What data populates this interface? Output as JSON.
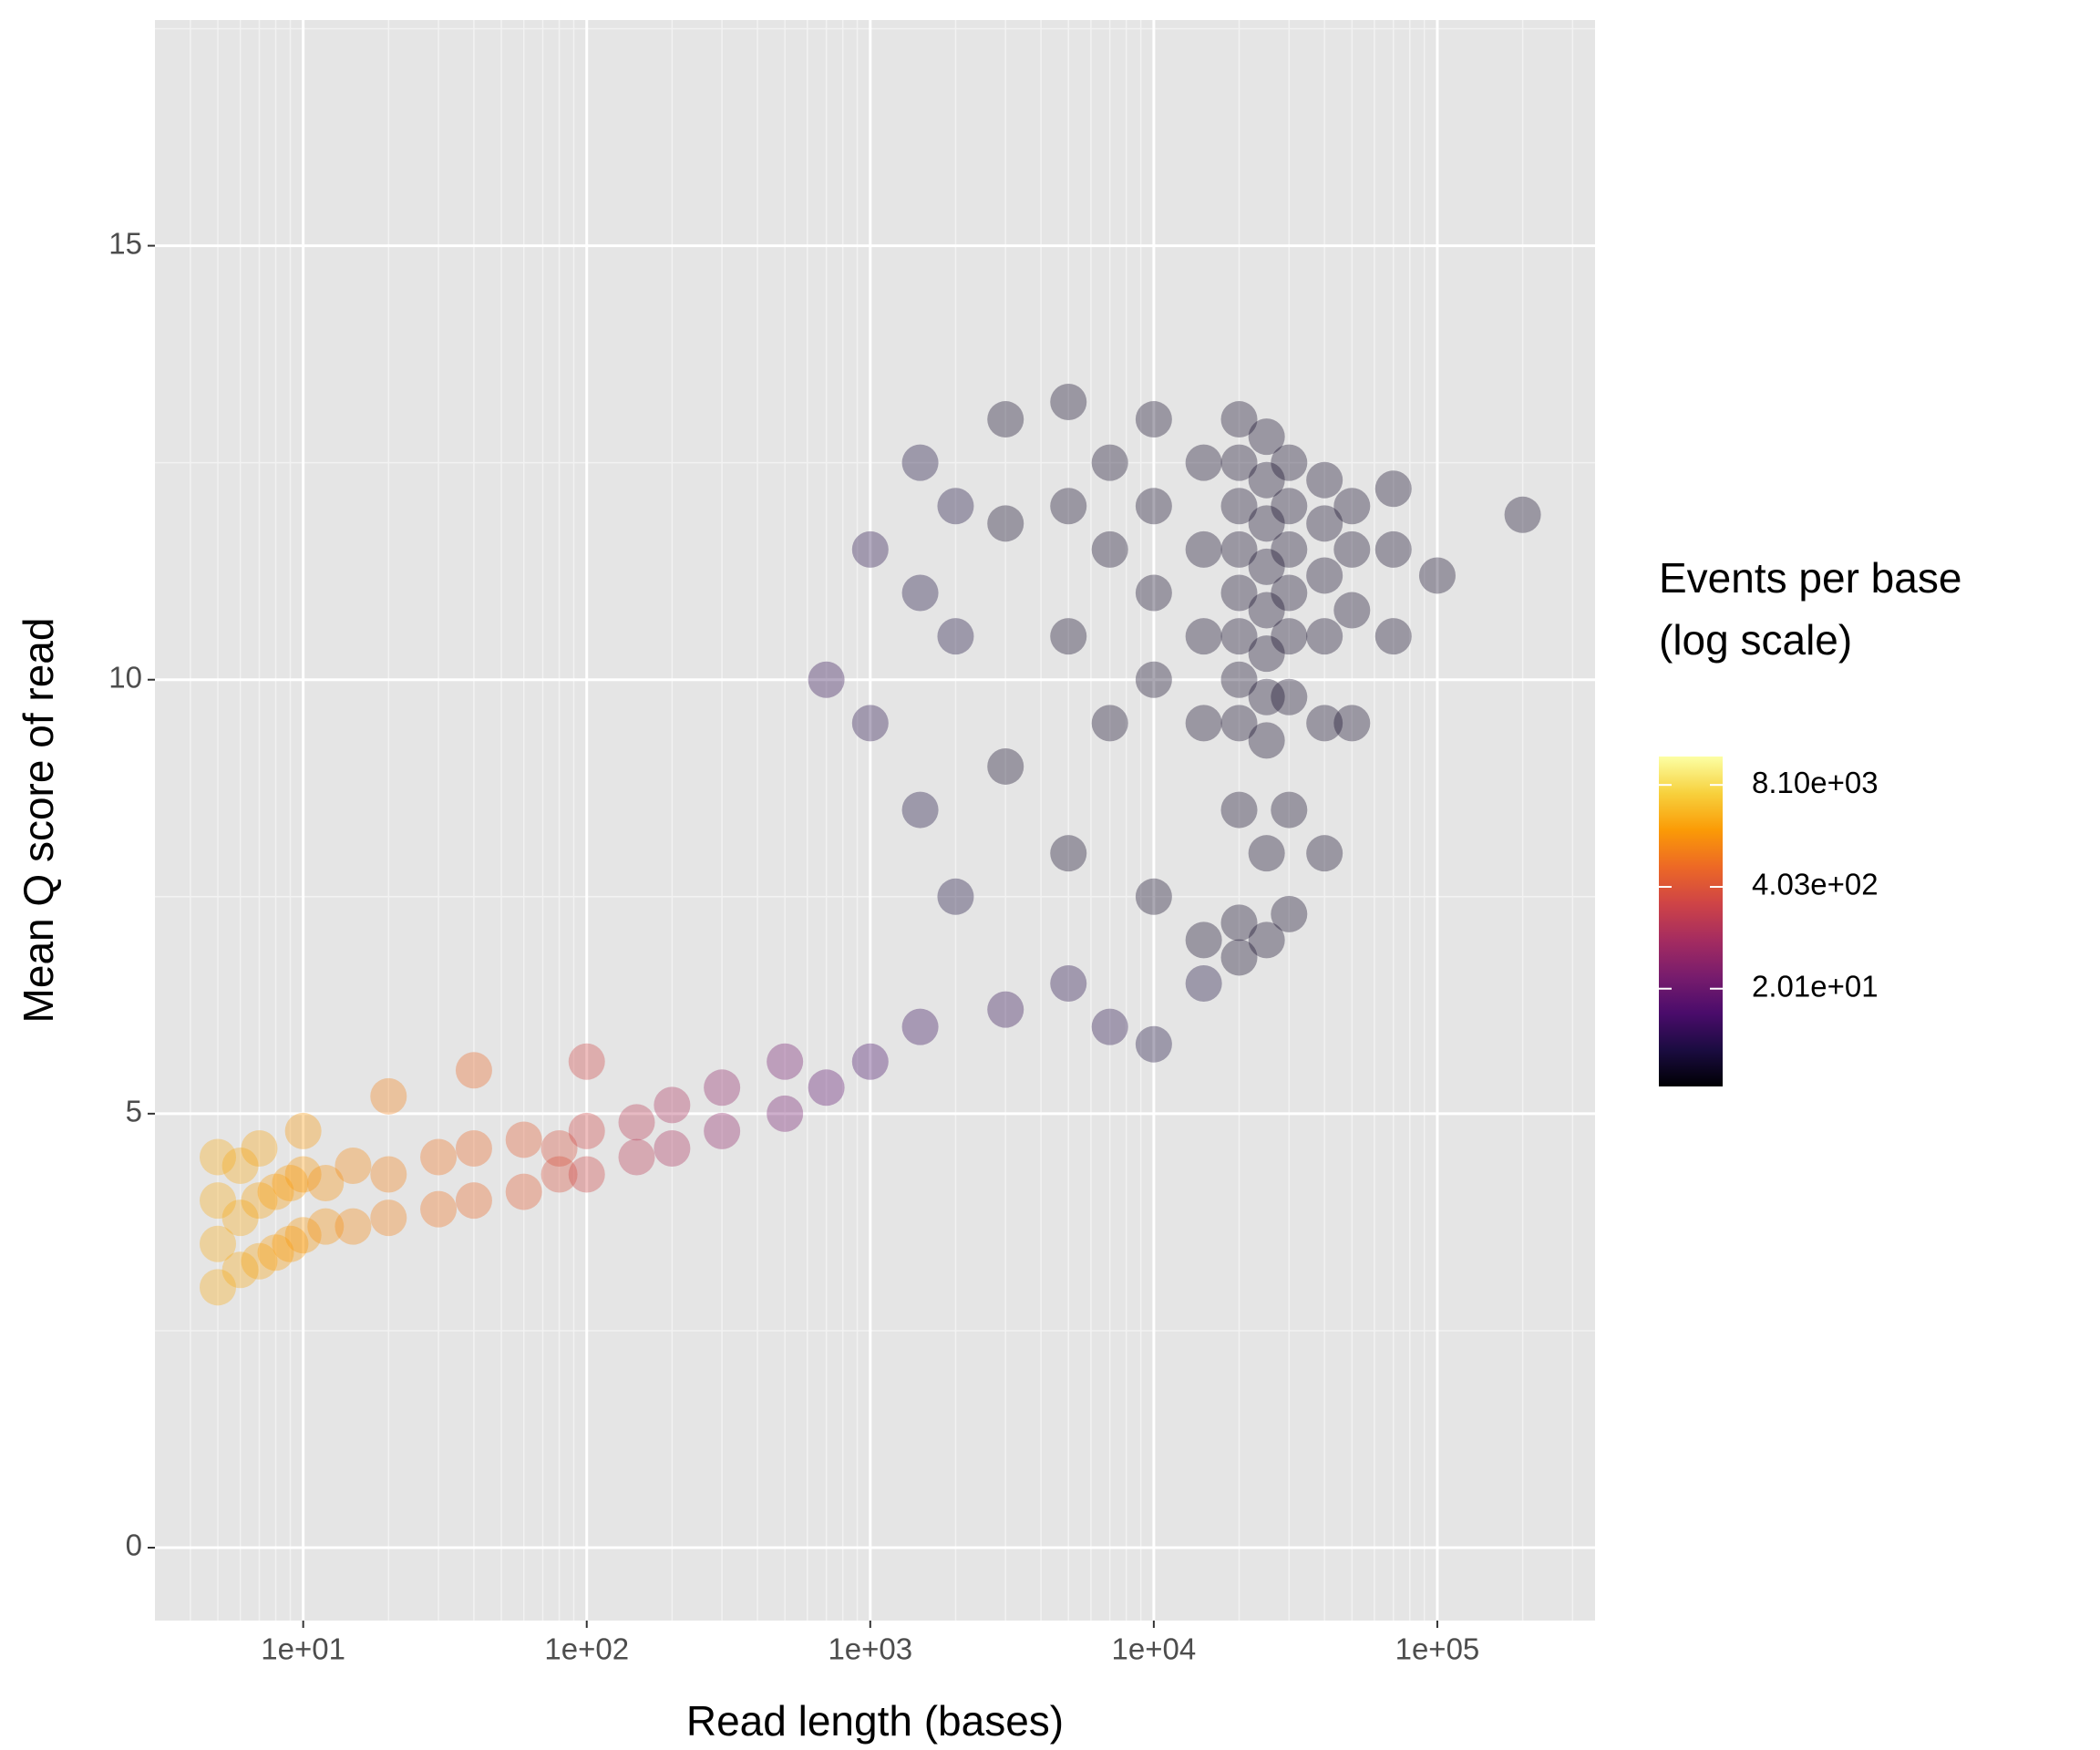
{
  "chart_data": {
    "type": "scatter",
    "x_label": "Read length (bases)",
    "y_label": "Mean Q score of read",
    "legend_title": [
      "Events per base",
      "(log scale)"
    ],
    "log_x": true,
    "grid": true,
    "background": "#e5e5e5",
    "xlim": [
      3,
      360000
    ],
    "ylim": [
      -0.84,
      17.6
    ],
    "xticks": [
      {
        "value": 10,
        "label": "1e+01"
      },
      {
        "value": 100,
        "label": "1e+02"
      },
      {
        "value": 1000,
        "label": "1e+03"
      },
      {
        "value": 10000,
        "label": "1e+04"
      },
      {
        "value": 100000,
        "label": "1e+05"
      }
    ],
    "xminorticks": [
      4,
      5,
      6,
      7,
      8,
      9,
      20,
      30,
      40,
      50,
      60,
      70,
      80,
      90,
      200,
      300,
      400,
      500,
      600,
      700,
      800,
      900,
      2000,
      3000,
      4000,
      5000,
      6000,
      7000,
      8000,
      9000,
      20000,
      30000,
      40000,
      50000,
      60000,
      70000,
      80000,
      90000,
      200000,
      300000
    ],
    "yticks": [
      0,
      5,
      10,
      15
    ],
    "yminorticks": [
      2.5,
      7.5,
      12.5,
      17.5
    ],
    "colorlim": [
      1.13,
      18700
    ],
    "log_color": true,
    "colormap": [
      "#000004",
      "#1b0c41",
      "#4a0c6b",
      "#781c6d",
      "#a52c60",
      "#cf4446",
      "#ed6925",
      "#fb9b06",
      "#f7d13d",
      "#fcffa4"
    ],
    "colorticks": [
      {
        "value": 8100,
        "label": "8.10e+03"
      },
      {
        "value": 403,
        "label": "4.03e+02"
      },
      {
        "value": 20.1,
        "label": "2.01e+01"
      }
    ],
    "x": [
      5,
      5,
      5,
      5,
      6,
      6,
      6,
      7,
      7,
      7,
      8,
      8,
      9,
      9,
      10,
      10,
      10,
      12,
      12,
      15,
      15,
      20,
      20,
      20,
      30,
      30,
      40,
      40,
      40,
      60,
      60,
      80,
      80,
      100,
      100,
      100,
      150,
      150,
      200,
      200,
      300,
      300,
      500,
      500,
      700,
      700,
      1000,
      1000,
      1000,
      1500,
      1500,
      1500,
      1500,
      2000,
      2000,
      2000,
      3000,
      3000,
      3000,
      3000,
      5000,
      5000,
      5000,
      5000,
      5000,
      7000,
      7000,
      7000,
      7000,
      10000,
      10000,
      10000,
      10000,
      10000,
      10000,
      15000,
      15000,
      15000,
      15000,
      15000,
      15000,
      20000,
      20000,
      20000,
      20000,
      20000,
      20000,
      20000,
      20000,
      20000,
      20000,
      20000,
      25000,
      25000,
      25000,
      25000,
      25000,
      25000,
      25000,
      25000,
      25000,
      25000,
      30000,
      30000,
      30000,
      30000,
      30000,
      30000,
      30000,
      30000,
      40000,
      40000,
      40000,
      40000,
      40000,
      40000,
      50000,
      50000,
      50000,
      50000,
      70000,
      70000,
      70000,
      100000,
      200000
    ],
    "y": [
      3.0,
      3.5,
      4.0,
      4.5,
      3.2,
      3.8,
      4.4,
      3.3,
      4.0,
      4.6,
      3.4,
      4.1,
      3.5,
      4.2,
      3.6,
      4.3,
      4.8,
      3.7,
      4.2,
      3.7,
      4.4,
      3.8,
      4.3,
      5.2,
      3.9,
      4.5,
      4.0,
      4.6,
      5.5,
      4.1,
      4.7,
      4.3,
      4.6,
      4.3,
      4.8,
      5.6,
      4.5,
      4.9,
      4.6,
      5.1,
      4.8,
      5.3,
      5.0,
      5.6,
      5.3,
      10.0,
      5.6,
      9.5,
      11.5,
      6.0,
      8.5,
      11.0,
      12.5,
      7.5,
      10.5,
      12.0,
      6.2,
      9.0,
      11.8,
      13.0,
      6.5,
      8.0,
      10.5,
      12.0,
      13.2,
      6.0,
      9.5,
      11.5,
      12.5,
      5.8,
      7.5,
      10.0,
      11.0,
      12.0,
      13.0,
      6.5,
      7.0,
      9.5,
      10.5,
      11.5,
      12.5,
      6.8,
      7.2,
      8.5,
      9.5,
      10.0,
      10.5,
      11.0,
      11.5,
      12.0,
      12.5,
      13.0,
      7.0,
      8.0,
      9.3,
      9.8,
      10.3,
      10.8,
      11.3,
      11.8,
      12.3,
      12.8,
      7.3,
      8.5,
      9.8,
      10.5,
      11.0,
      11.5,
      12.0,
      12.5,
      8.0,
      9.5,
      10.5,
      11.2,
      11.8,
      12.3,
      9.5,
      10.8,
      11.5,
      12.0,
      10.5,
      11.5,
      12.2,
      11.2,
      11.9
    ],
    "events": [
      3000,
      3000,
      3000,
      3000,
      2800,
      2800,
      2800,
      2500,
      2500,
      2500,
      2300,
      2300,
      2200,
      2200,
      2000,
      2000,
      2000,
      1800,
      1800,
      1500,
      1500,
      1200,
      1200,
      1200,
      900,
      900,
      700,
      700,
      700,
      500,
      500,
      350,
      350,
      250,
      250,
      250,
      150,
      150,
      100,
      100,
      50,
      50,
      25,
      25,
      15,
      5,
      8,
      4,
      4,
      6,
      3,
      3,
      3,
      3,
      3,
      3,
      5,
      2,
      2,
      2,
      4,
      2,
      2,
      2,
      2,
      4,
      2,
      2,
      2,
      3,
      2,
      2,
      2,
      2,
      2,
      3,
      2,
      2,
      2,
      2,
      2,
      2,
      2,
      2,
      2,
      2,
      2,
      2,
      2,
      2,
      2,
      2,
      2,
      2,
      2,
      2,
      2,
      2,
      2,
      2,
      2,
      2,
      2,
      2,
      2,
      2,
      2,
      2,
      2,
      2,
      2,
      2,
      2,
      2,
      2,
      2,
      2,
      2,
      2,
      2,
      2,
      2,
      2,
      2,
      2
    ]
  }
}
